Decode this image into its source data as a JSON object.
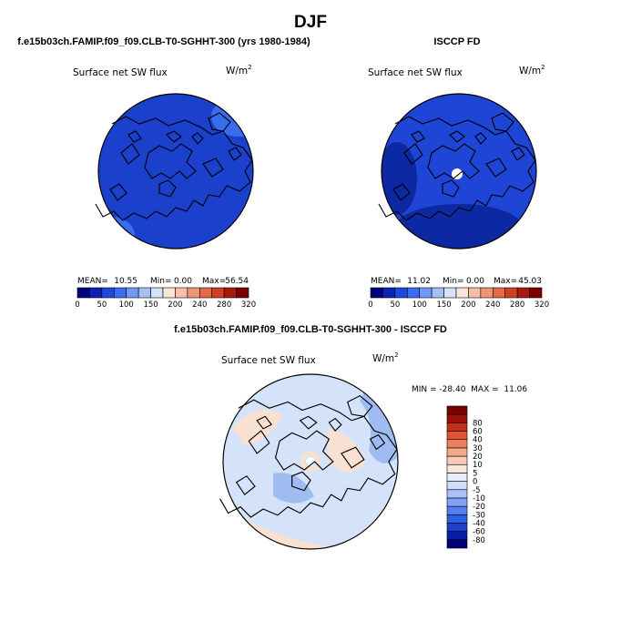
{
  "figure": {
    "title": "DJF",
    "panels": [
      {
        "header": "f.e15b03ch.FAMIP.f09_f09.CLB-T0-SGHHT-300 (yrs 1980-1984)",
        "variable": "Surface net SW flux",
        "units": "W/m",
        "units_exp": "2",
        "stats": {
          "mean_label": "MEAN=",
          "mean": "10.55",
          "min_label": "Min=",
          "min": "0.00",
          "max_label": "Max=",
          "max": "56.54"
        }
      },
      {
        "header": "ISCCP FD",
        "variable": "Surface net SW flux",
        "units": "W/m",
        "units_exp": "2",
        "stats": {
          "mean_label": "MEAN=",
          "mean": "11.02",
          "min_label": "Min=",
          "min": "0.00",
          "max_label": "Max=",
          "max": "45.03"
        }
      },
      {
        "header": "f.e15b03ch.FAMIP.f09_f09.CLB-T0-SGHHT-300 - ISCCP FD",
        "variable": "Surface net SW flux",
        "units": "W/m",
        "units_exp": "2",
        "minmax": "MIN = -28.40  MAX =  11.06"
      }
    ],
    "colors": {
      "abs_bins": [
        "#00007f",
        "#0a23b4",
        "#1f49dc",
        "#3a6cf0",
        "#6f99f4",
        "#a5c0f5",
        "#d4e3f9",
        "#fbe5da",
        "#f6c0a6",
        "#ef9676",
        "#e46948",
        "#cf3f20",
        "#aa1909",
        "#7a0000"
      ],
      "diff_bins": [
        "#00007f",
        "#081ea8",
        "#1a40cc",
        "#2e5ee6",
        "#557ff0",
        "#7fa2f4",
        "#a9c3f7",
        "#cfdef9",
        "#e6eef9",
        "#f9e6da",
        "#f7cbb3",
        "#f2a889",
        "#eb815c",
        "#de5631",
        "#c63018",
        "#9d0f05",
        "#7a0000"
      ],
      "ocean_model": "#1a40cc",
      "ocean_obs": "#1f45d6",
      "ocean_obs_dark": "#0d28a3",
      "diff_base": "#d4e3f9",
      "diff_pos": "#f9e1d1",
      "diff_neg": "#9fbcf2",
      "pole_hole": "#ffffff"
    }
  },
  "chart_data": [
    {
      "type": "heatmap",
      "title": "f.e15b03ch.FAMIP.f09_f09.CLB-T0-SGHHT-300 (yrs 1980-1984)",
      "variable": "Surface net SW flux",
      "units": "W/m2",
      "projection": "polar stereographic (north)",
      "stats": {
        "mean": 10.55,
        "min": 0.0,
        "max": 56.54
      },
      "colorbar": {
        "levels": [
          0,
          25,
          50,
          75,
          100,
          125,
          150,
          175,
          200,
          220,
          240,
          260,
          280,
          300,
          320
        ],
        "tick_labels": [
          "0",
          "50",
          "100",
          "150",
          "200",
          "240",
          "280",
          "320"
        ],
        "orientation": "horizontal"
      }
    },
    {
      "type": "heatmap",
      "title": "ISCCP FD",
      "variable": "Surface net SW flux",
      "units": "W/m2",
      "projection": "polar stereographic (north)",
      "stats": {
        "mean": 11.02,
        "min": 0.0,
        "max": 45.03
      },
      "colorbar": {
        "levels": [
          0,
          25,
          50,
          75,
          100,
          125,
          150,
          175,
          200,
          220,
          240,
          260,
          280,
          300,
          320
        ],
        "tick_labels": [
          "0",
          "50",
          "100",
          "150",
          "200",
          "240",
          "280",
          "320"
        ],
        "orientation": "horizontal"
      }
    },
    {
      "type": "heatmap",
      "title": "f.e15b03ch.FAMIP.f09_f09.CLB-T0-SGHHT-300 - ISCCP FD",
      "variable": "Surface net SW flux",
      "units": "W/m2",
      "projection": "polar stereographic (north)",
      "stats": {
        "min": -28.4,
        "max": 11.06
      },
      "colorbar": {
        "levels": [
          -80,
          -60,
          -40,
          -30,
          -20,
          -10,
          -5,
          0,
          5,
          10,
          20,
          30,
          40,
          60,
          80
        ],
        "tick_labels": [
          "-80",
          "-60",
          "-40",
          "-30",
          "-20",
          "-10",
          "-5",
          "0",
          "5",
          "10",
          "20",
          "30",
          "40",
          "60",
          "80"
        ],
        "orientation": "vertical"
      }
    }
  ]
}
